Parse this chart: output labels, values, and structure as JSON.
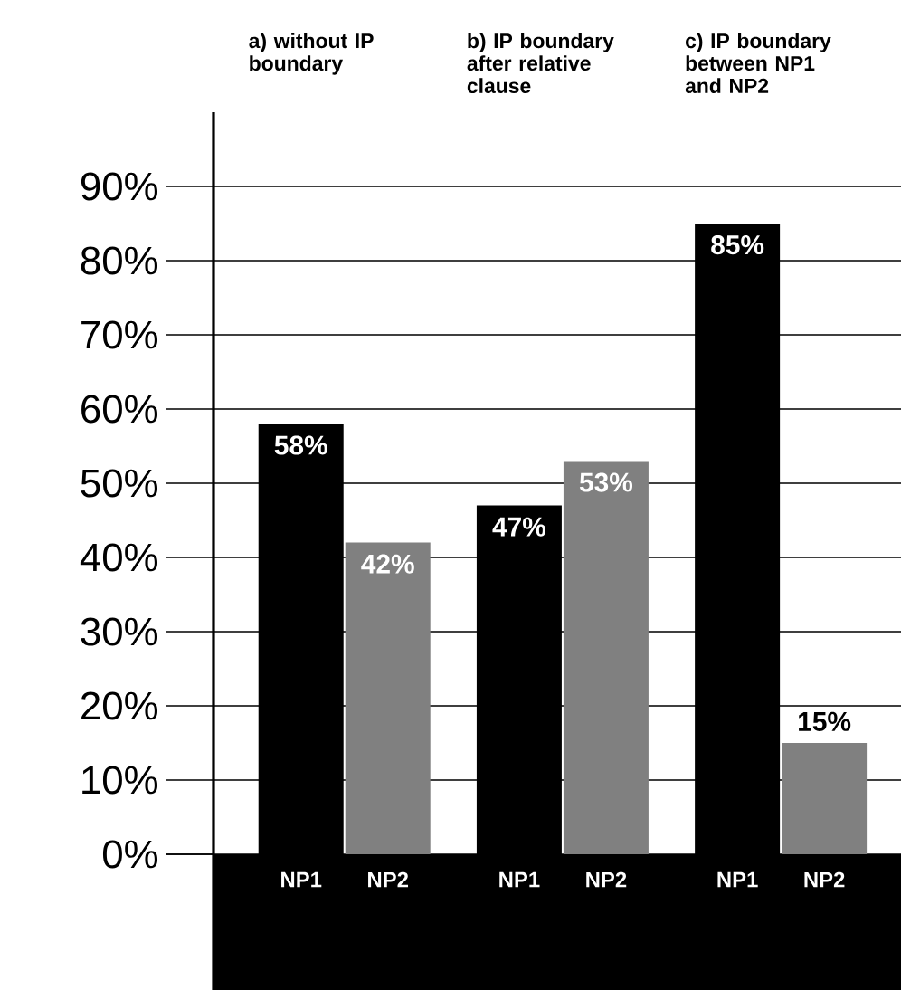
{
  "chart_data": {
    "type": "bar",
    "categories": [
      "a) without IP boundary",
      "b) IP boundary after relative clause",
      "c) IP boundary between NP1 and NP2"
    ],
    "series": [
      {
        "name": "NP1",
        "color": "#000000",
        "values": [
          58,
          47,
          85
        ],
        "value_labels": [
          "58%",
          "47%",
          "85%"
        ]
      },
      {
        "name": "NP2",
        "color": "#808080",
        "values": [
          42,
          53,
          15
        ],
        "value_labels": [
          "42%",
          "53%",
          "15%"
        ]
      }
    ],
    "ylim": [
      0,
      100
    ],
    "yticks": [
      {
        "value": 0,
        "label": "0%"
      },
      {
        "value": 10,
        "label": "10%"
      },
      {
        "value": 20,
        "label": "20%"
      },
      {
        "value": 30,
        "label": "30%"
      },
      {
        "value": 40,
        "label": "40%"
      },
      {
        "value": 50,
        "label": "50%"
      },
      {
        "value": 60,
        "label": "60%"
      },
      {
        "value": 70,
        "label": "70%"
      },
      {
        "value": 80,
        "label": "80%"
      },
      {
        "value": 90,
        "label": "90%"
      }
    ],
    "grid": "y",
    "legend": false
  }
}
